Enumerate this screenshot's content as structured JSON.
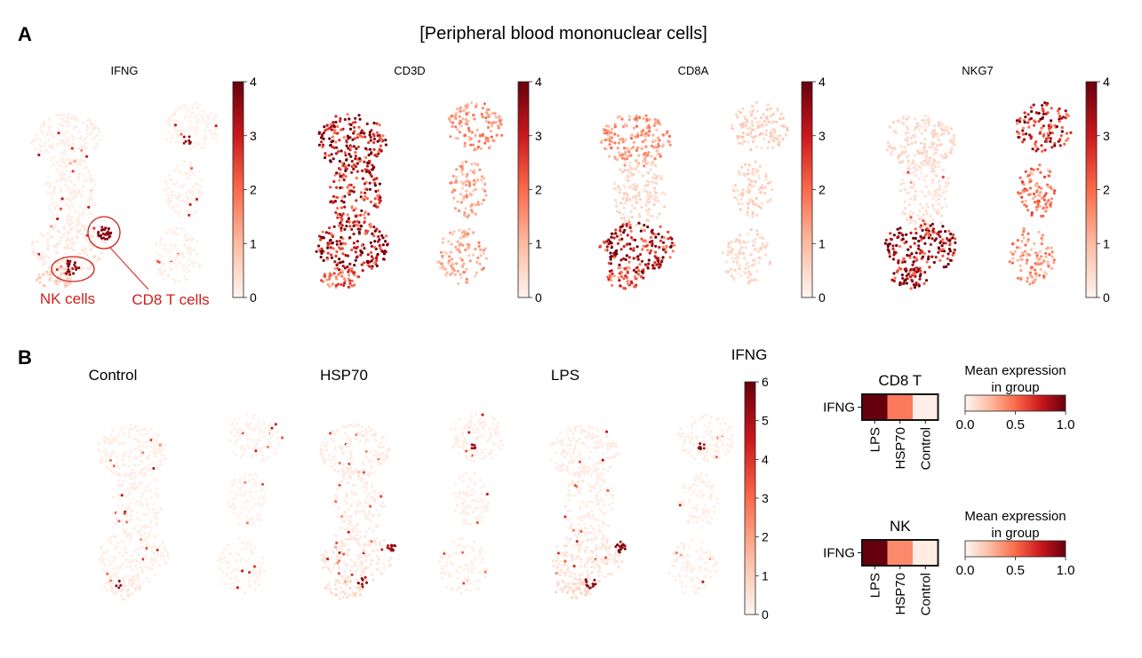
{
  "panel_a": {
    "letter": "A",
    "title": "[Peripheral blood mononuclear cells]",
    "annotations": {
      "nk": "NK cells",
      "cd8": "CD8 T cells"
    }
  },
  "panel_b": {
    "letter": "B",
    "colorbar_title": "IFNG"
  },
  "colors": {
    "annotation": "#d0201a",
    "cmap": [
      "#fff5f0",
      "#fcbba1",
      "#fb6a4a",
      "#cb181d",
      "#67000d"
    ]
  },
  "chart_data": [
    {
      "type": "scatter",
      "id": "umap-ifng",
      "title": "IFNG",
      "colorbar": {
        "min": 0,
        "max": 4,
        "ticks": [
          "0",
          "1",
          "2",
          "3",
          "4"
        ]
      }
    },
    {
      "type": "scatter",
      "id": "umap-cd3d",
      "title": "CD3D",
      "colorbar": {
        "min": 0,
        "max": 4,
        "ticks": [
          "0",
          "1",
          "2",
          "3",
          "4"
        ]
      }
    },
    {
      "type": "scatter",
      "id": "umap-cd8a",
      "title": "CD8A",
      "colorbar": {
        "min": 0,
        "max": 4,
        "ticks": [
          "0",
          "1",
          "2",
          "3",
          "4"
        ]
      }
    },
    {
      "type": "scatter",
      "id": "umap-nkg7",
      "title": "NKG7",
      "colorbar": {
        "min": 0,
        "max": 4,
        "ticks": [
          "0",
          "1",
          "2",
          "3",
          "4"
        ]
      }
    },
    {
      "type": "scatter",
      "id": "umap-control",
      "title": "Control"
    },
    {
      "type": "scatter",
      "id": "umap-hsp70",
      "title": "HSP70"
    },
    {
      "type": "scatter",
      "id": "umap-lps",
      "title": "LPS",
      "colorbar": {
        "title": "IFNG",
        "min": 0,
        "max": 6,
        "ticks": [
          "0",
          "1",
          "2",
          "3",
          "4",
          "5",
          "6"
        ]
      }
    },
    {
      "type": "heatmap",
      "id": "dot-cd8t",
      "title": "CD8 T",
      "row_label": "IFNG",
      "categories": [
        "LPS",
        "HSP70",
        "Control"
      ],
      "values": [
        1.0,
        0.45,
        0.03
      ],
      "colorbar": {
        "title_line1": "Mean expression",
        "title_line2": "in group",
        "min": 0,
        "max": 1,
        "ticks": [
          "0.0",
          "0.5",
          "1.0"
        ]
      }
    },
    {
      "type": "heatmap",
      "id": "dot-nk",
      "title": "NK",
      "row_label": "IFNG",
      "categories": [
        "LPS",
        "HSP70",
        "Control"
      ],
      "values": [
        1.0,
        0.4,
        0.04
      ],
      "colorbar": {
        "title_line1": "Mean expression",
        "title_line2": "in group",
        "min": 0,
        "max": 1,
        "ticks": [
          "0.0",
          "0.5",
          "1.0"
        ]
      }
    }
  ]
}
